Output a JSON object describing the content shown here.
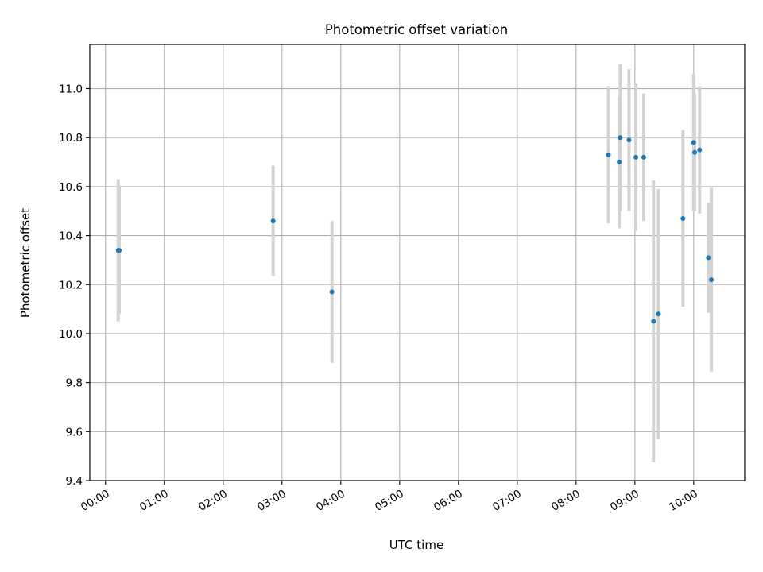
{
  "chart_data": {
    "type": "scatter",
    "title": "Photometric offset variation",
    "xlabel": "UTC time",
    "ylabel": "Photometric offset",
    "xlim": [
      "-00:16",
      "10:52"
    ],
    "ylim": [
      9.4,
      11.18
    ],
    "x_ticks": [
      "00:00",
      "01:00",
      "02:00",
      "03:00",
      "04:00",
      "05:00",
      "06:00",
      "07:00",
      "08:00",
      "09:00",
      "10:00"
    ],
    "y_ticks": [
      9.4,
      9.6,
      9.8,
      10.0,
      10.2,
      10.4,
      10.6,
      10.8,
      11.0
    ],
    "grid": true,
    "point_color": "#1f77b4",
    "errorbar_color": "#d3d3d3",
    "points": [
      {
        "x": "00:13",
        "y": 10.34,
        "err": 0.29
      },
      {
        "x": "00:14",
        "y": 10.34,
        "err": 0.26
      },
      {
        "x": "02:51",
        "y": 10.46,
        "err": 0.225
      },
      {
        "x": "03:51",
        "y": 10.17,
        "err": 0.29
      },
      {
        "x": "08:33",
        "y": 10.73,
        "err": 0.28
      },
      {
        "x": "08:44",
        "y": 10.7,
        "err": 0.27
      },
      {
        "x": "08:45",
        "y": 10.8,
        "err": 0.3
      },
      {
        "x": "08:54",
        "y": 10.79,
        "err": 0.29
      },
      {
        "x": "09:01",
        "y": 10.72,
        "err": 0.3
      },
      {
        "x": "09:09",
        "y": 10.72,
        "err": 0.26
      },
      {
        "x": "09:19",
        "y": 10.05,
        "err": 0.575
      },
      {
        "x": "09:24",
        "y": 10.08,
        "err": 0.51
      },
      {
        "x": "09:49",
        "y": 10.47,
        "err": 0.36
      },
      {
        "x": "10:00",
        "y": 10.78,
        "err": 0.28
      },
      {
        "x": "10:01",
        "y": 10.74,
        "err": 0.24
      },
      {
        "x": "10:06",
        "y": 10.75,
        "err": 0.26
      },
      {
        "x": "10:15",
        "y": 10.31,
        "err": 0.225
      },
      {
        "x": "10:18",
        "y": 10.22,
        "err": 0.375
      }
    ]
  }
}
